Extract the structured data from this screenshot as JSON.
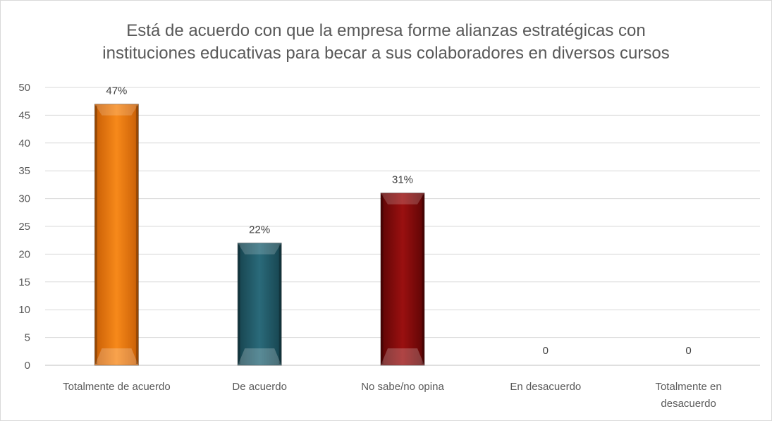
{
  "chart_data": {
    "type": "bar",
    "title": "Está de acuerdo con que la empresa forme alianzas estratégicas con instituciones educativas para becar a sus colaboradores en diversos cursos",
    "title_lines": [
      "Está de acuerdo con que la empresa forme alianzas estratégicas con",
      "instituciones educativas para becar a sus colaboradores en diversos cursos"
    ],
    "categories": [
      "Totalmente de acuerdo",
      "De acuerdo",
      "No sabe/no opina",
      "En desacuerdo",
      "Totalmente en desacuerdo"
    ],
    "category_lines": [
      [
        "Totalmente de acuerdo"
      ],
      [
        "De acuerdo"
      ],
      [
        "No sabe/no opina"
      ],
      [
        "En desacuerdo"
      ],
      [
        "Totalmente en",
        "desacuerdo"
      ]
    ],
    "values": [
      47,
      22,
      31,
      0,
      0
    ],
    "data_labels": [
      "47%",
      "22%",
      "31%",
      "0",
      "0"
    ],
    "colors": [
      "#f07c10",
      "#1f5a6a",
      "#8b0a0a",
      "#999999",
      "#999999"
    ],
    "ylim": [
      0,
      50
    ],
    "yticks": [
      0,
      5,
      10,
      15,
      20,
      25,
      30,
      35,
      40,
      45,
      50
    ],
    "xlabel": "",
    "ylabel": "",
    "grid": true,
    "legend": "none"
  }
}
